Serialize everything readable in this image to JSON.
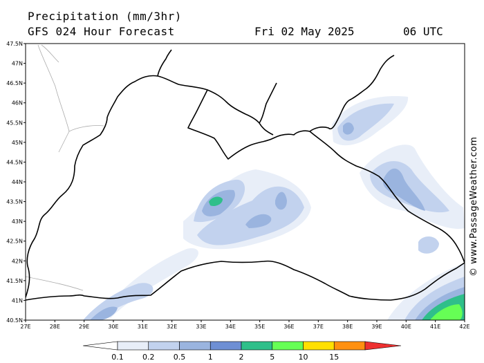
{
  "header": {
    "title": "Precipitation (mm/3hr)",
    "subtitle": "GFS 024 Hour Forecast",
    "date": "Fri 02 May 2025",
    "time": "06 UTC"
  },
  "credit": "© www.PassageWeather.com",
  "axes": {
    "lon_labels": [
      "27E",
      "28E",
      "29E",
      "30E",
      "31E",
      "32E",
      "33E",
      "34E",
      "35E",
      "36E",
      "37E",
      "38E",
      "39E",
      "40E",
      "41E",
      "42E"
    ],
    "lat_labels": [
      "47.5N",
      "47N",
      "46.5N",
      "46N",
      "45.5N",
      "45N",
      "44.5N",
      "44N",
      "43.5N",
      "43N",
      "42.5N",
      "42N",
      "41.5N",
      "41N",
      "40.5N"
    ],
    "lon_range": [
      27,
      42
    ],
    "lat_range": [
      40.5,
      47.5
    ]
  },
  "legend": {
    "labels": [
      "0.1",
      "0.2",
      "0.5",
      "1",
      "2",
      "5",
      "10",
      "15"
    ],
    "colors": [
      "#ffffff",
      "#e8eef8",
      "#c2d2ee",
      "#9ab4df",
      "#6e8fd4",
      "#2fbf8a",
      "#66ff55",
      "#ffe000",
      "#ff9010",
      "#ee3030"
    ]
  }
}
